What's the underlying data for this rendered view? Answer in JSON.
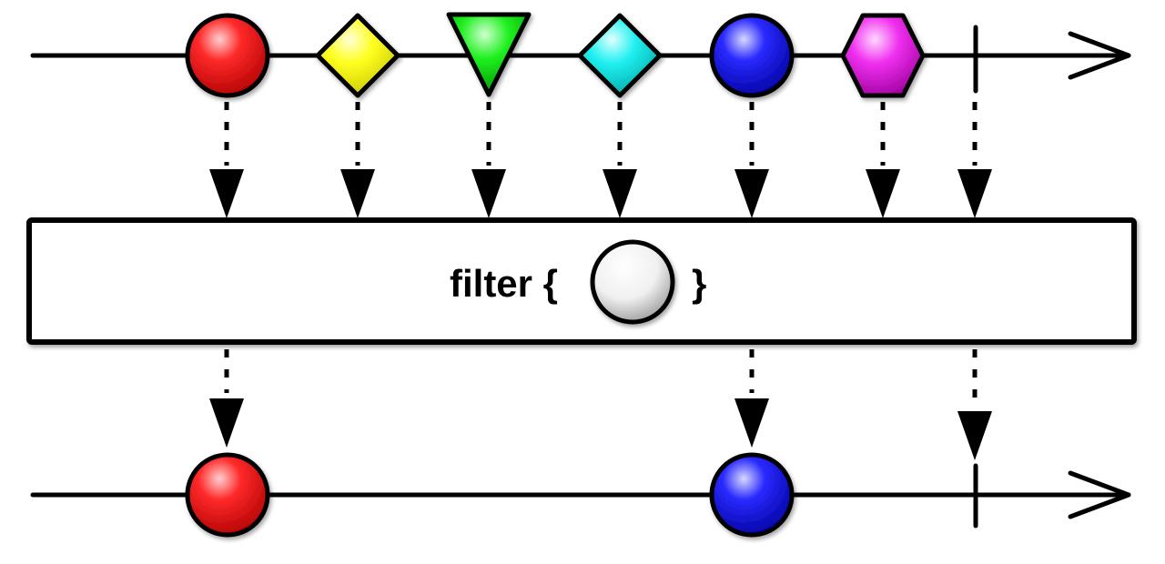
{
  "operator": {
    "label_prefix": "filter {",
    "label_suffix": "}",
    "predicate_shape": "circle",
    "predicate_color": "#e8e8e8"
  },
  "input_stream": {
    "items": [
      {
        "shape": "circle",
        "color": "#e81010"
      },
      {
        "shape": "diamond",
        "color": "#f2f210"
      },
      {
        "shape": "triangle",
        "color": "#10dc10"
      },
      {
        "shape": "diamond",
        "color": "#10dcdc"
      },
      {
        "shape": "circle",
        "color": "#1a1ad8"
      },
      {
        "shape": "hexagon",
        "color": "#e010e0"
      }
    ],
    "completes": true
  },
  "output_stream": {
    "items": [
      {
        "shape": "circle",
        "color": "#e81010"
      },
      {
        "shape": "circle",
        "color": "#1a1ad8"
      }
    ],
    "completes": true
  }
}
